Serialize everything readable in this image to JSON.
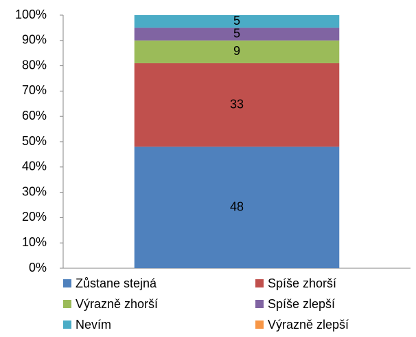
{
  "chart_data": {
    "type": "stacked_bar",
    "categories": [
      null
    ],
    "series": [
      {
        "name": "Zůstane stejná",
        "color": "#4f81bd",
        "values": [
          48
        ]
      },
      {
        "name": "Spíše zhorší",
        "color": "#c0504d",
        "values": [
          33
        ]
      },
      {
        "name": "Výrazně zhorší",
        "color": "#9bbb59",
        "values": [
          9
        ]
      },
      {
        "name": "Spíše zlepší",
        "color": "#8064a2",
        "values": [
          5
        ]
      },
      {
        "name": "Nevím",
        "color": "#4bacc6",
        "values": [
          5
        ]
      },
      {
        "name": "Výrazně zlepší",
        "color": "#f79646",
        "values": [
          0
        ]
      }
    ],
    "ylim": [
      0,
      100
    ],
    "yticks": [
      {
        "value": 0,
        "label": "0%"
      },
      {
        "value": 10,
        "label": "10%"
      },
      {
        "value": 20,
        "label": "20%"
      },
      {
        "value": 30,
        "label": "30%"
      },
      {
        "value": 40,
        "label": "40%"
      },
      {
        "value": 50,
        "label": "50%"
      },
      {
        "value": 60,
        "label": "60%"
      },
      {
        "value": 70,
        "label": "70%"
      },
      {
        "value": 80,
        "label": "80%"
      },
      {
        "value": 90,
        "label": "90%"
      },
      {
        "value": 100,
        "label": "100%"
      }
    ],
    "grid": false,
    "legend": "bottom"
  }
}
